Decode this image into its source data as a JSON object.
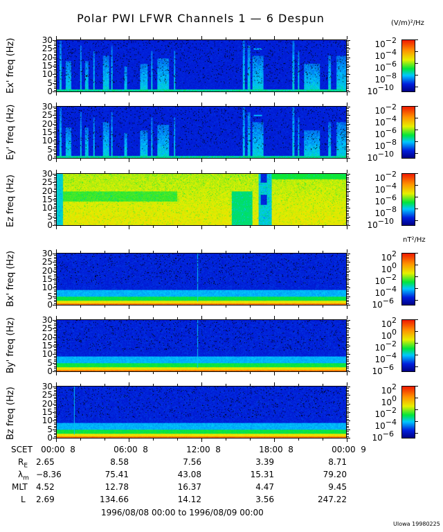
{
  "title": "Polar PWI LFWR Channels 1 — 6 Despun",
  "chart_data": {
    "type": "heatmap",
    "title": "Polar PWI LFWR Channels 1 — 6 Despun",
    "x_ticks": [
      "00:00  8",
      "06:00  8",
      "12:00  8",
      "18:00  8",
      "00:00  9"
    ],
    "x_label": "SCET",
    "x_range_hours": [
      0,
      24
    ],
    "y_ticks": [
      "0",
      "5",
      "10",
      "15",
      "20",
      "25",
      "30"
    ],
    "ylim": [
      0,
      30
    ],
    "panels": [
      {
        "ylabel": "Ex' freq (Hz)",
        "colorbar_unit": "(V/m)²/Hz",
        "colorbar_ticks": [
          "-2",
          "-4",
          "-6",
          "-8",
          "-10"
        ],
        "colorbar_range_log10": [
          -11,
          -2
        ]
      },
      {
        "ylabel": "Ey' freq (Hz)",
        "colorbar_ticks": [
          "-2",
          "-4",
          "-6",
          "-8",
          "-10"
        ],
        "colorbar_range_log10": [
          -11,
          -2
        ]
      },
      {
        "ylabel": "Ez freq (Hz)",
        "colorbar_ticks": [
          "-2",
          "-4",
          "-6",
          "-8",
          "-10"
        ],
        "colorbar_range_log10": [
          -11,
          -2
        ]
      },
      {
        "ylabel": "Bx' freq (Hz)",
        "colorbar_unit": "nT²/Hz",
        "colorbar_ticks": [
          "2",
          "0",
          "-2",
          "-4",
          "-6"
        ],
        "colorbar_range_log10": [
          -7,
          2
        ]
      },
      {
        "ylabel": "By' freq (Hz)",
        "colorbar_ticks": [
          "2",
          "0",
          "-2",
          "-4",
          "-6"
        ],
        "colorbar_range_log10": [
          -7,
          2
        ]
      },
      {
        "ylabel": "Bz freq (Hz)",
        "colorbar_ticks": [
          "2",
          "0",
          "-2",
          "-4",
          "-6"
        ],
        "colorbar_range_log10": [
          -7,
          2
        ]
      }
    ],
    "colorbar_base": "10"
  },
  "ephemeris": {
    "rows": [
      {
        "label": "R",
        "sub": "E",
        "values": [
          "2.65",
          "8.58",
          "7.56",
          "3.39",
          "8.71"
        ]
      },
      {
        "label": "λ",
        "sub": "m",
        "values": [
          "−8.36",
          "75.41",
          "43.08",
          "15.31",
          "79.20"
        ]
      },
      {
        "label": "MLT",
        "sub": "",
        "values": [
          "4.52",
          "12.78",
          "16.37",
          "4.47",
          "9.45"
        ]
      },
      {
        "label": "L",
        "sub": "",
        "values": [
          "2.69",
          "134.66",
          "14.12",
          "3.56",
          "247.22"
        ]
      }
    ]
  },
  "date_range": "1996/08/08 00:00 to 1996/08/09 00:00",
  "credit": "UIowa 19980225"
}
